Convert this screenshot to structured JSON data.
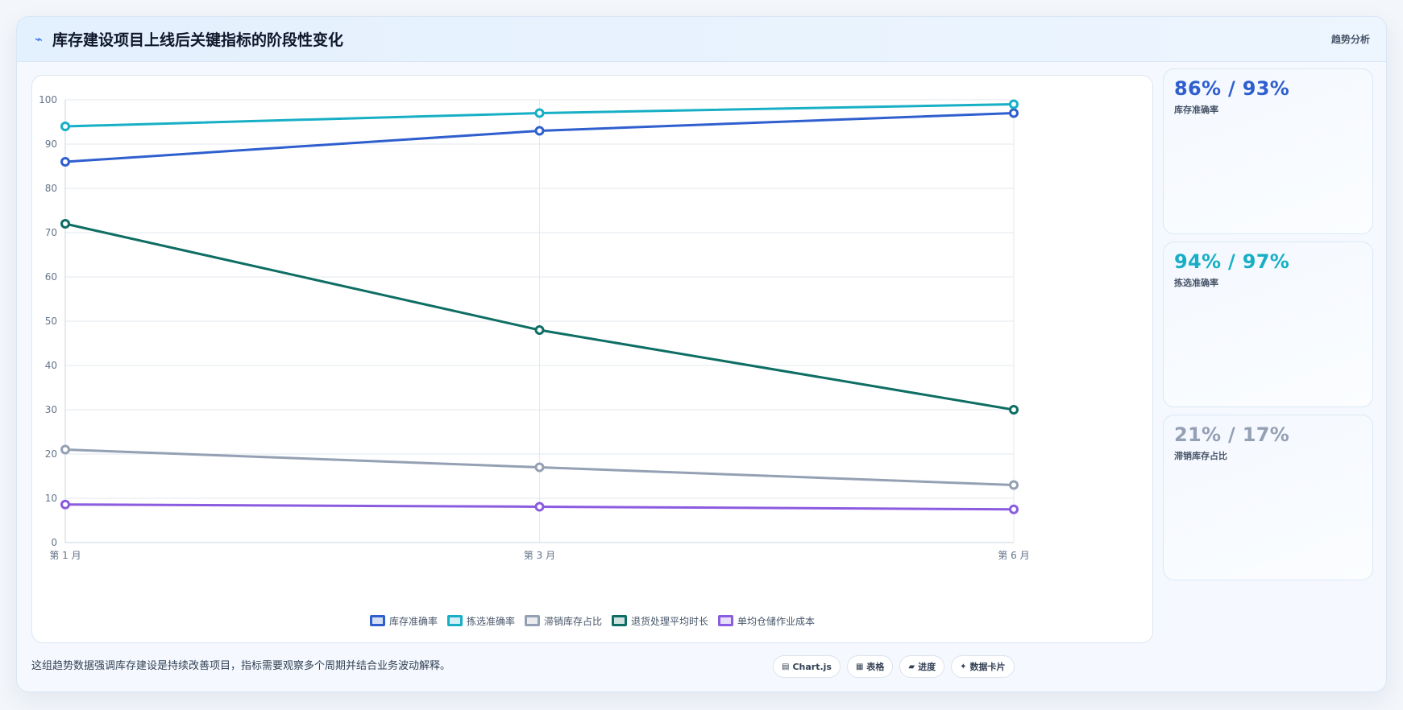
{
  "header": {
    "icon": "⌁",
    "title": "库存建设项目上线后关键指标的阶段性变化",
    "tag": "趋势分析"
  },
  "chart_data": {
    "type": "line",
    "title": "",
    "xlabel": "",
    "ylabel": "",
    "categories": [
      "第 1 月",
      "第 3 月",
      "第 6 月"
    ],
    "ylim": [
      0,
      100
    ],
    "yticks": [
      0,
      10,
      20,
      30,
      40,
      50,
      60,
      70,
      80,
      90,
      100
    ],
    "grid": true,
    "legend_position": "bottom",
    "series": [
      {
        "name": "库存准确率",
        "values": [
          86,
          93,
          97
        ],
        "color": "#2f5fce"
      },
      {
        "name": "拣选准确率",
        "values": [
          94,
          97,
          99
        ],
        "color": "#17afc6"
      },
      {
        "name": "滞销库存占比",
        "values": [
          21,
          17,
          13
        ],
        "color": "#94a0b3"
      },
      {
        "name": "退货处理平均时长",
        "values": [
          72,
          48,
          30
        ],
        "color": "#0e6e64"
      },
      {
        "name": "单均仓储作业成本",
        "values": [
          8.6,
          8.1,
          7.5
        ],
        "color": "#8b5be0"
      }
    ]
  },
  "kpis": [
    {
      "value": "86% / 93%",
      "label": "库存准确率",
      "color": "#2f5fce"
    },
    {
      "value": "94% / 97%",
      "label": "拣选准确率",
      "color": "#17afc6"
    },
    {
      "value": "21% / 17%",
      "label": "滞销库存占比",
      "color": "#94a0b3"
    }
  ],
  "footer": {
    "note": "这组趋势数据强调库存建设是持续改善项目，指标需要观察多个周期并结合业务波动解释。",
    "pills": [
      {
        "icon": "▤",
        "label": "Chart.js"
      },
      {
        "icon": "▦",
        "label": "表格"
      },
      {
        "icon": "▰",
        "label": "进度"
      },
      {
        "icon": "✦",
        "label": "数据卡片"
      }
    ]
  }
}
